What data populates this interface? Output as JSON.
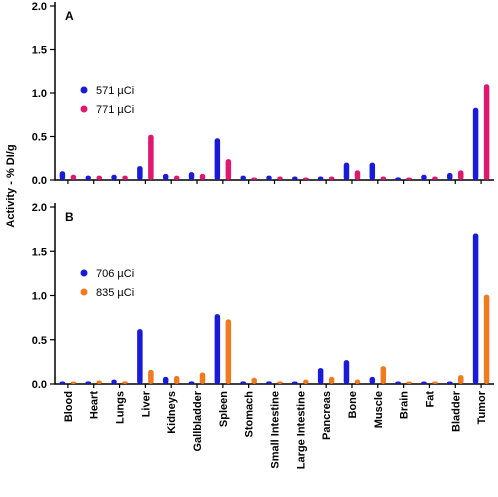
{
  "colors": {
    "panel_a_series_1": "#1a1adb",
    "panel_a_series_2": "#e0176f",
    "panel_b_series_1": "#1a1adb",
    "panel_b_series_2": "#f07a1f"
  },
  "chart_data": [
    {
      "type": "bar",
      "panel_label": "A",
      "ylabel": "Activity - % DI/g",
      "ylim": [
        0,
        2.0
      ],
      "yticks": [
        "0.0",
        "0.5",
        "1.0",
        "1.5",
        "2.0"
      ],
      "categories": [
        "Blood",
        "Heart",
        "Lungs",
        "Liver",
        "Kidneys",
        "Gallbladder",
        "Spleen",
        "Stomach",
        "Small Intestine",
        "Large Intestine",
        "Pancreas",
        "Bone",
        "Muscle",
        "Brain",
        "Fat",
        "Bladder",
        "Tumor"
      ],
      "legend_position": "top-left",
      "series": [
        {
          "name": "571 µCi",
          "values": [
            0.1,
            0.05,
            0.06,
            0.16,
            0.07,
            0.09,
            0.48,
            0.05,
            0.05,
            0.04,
            0.04,
            0.2,
            0.2,
            0.03,
            0.06,
            0.08,
            0.83
          ]
        },
        {
          "name": "771 µCi",
          "values": [
            0.06,
            0.05,
            0.05,
            0.52,
            0.05,
            0.07,
            0.24,
            0.02,
            0.04,
            0.02,
            0.04,
            0.11,
            0.04,
            0.02,
            0.04,
            0.11,
            1.1
          ]
        }
      ]
    },
    {
      "type": "bar",
      "panel_label": "B",
      "ylabel": "Activity - % DI/g",
      "ylim": [
        0,
        2.0
      ],
      "yticks": [
        "0.0",
        "0.5",
        "1.0",
        "1.5",
        "2.0"
      ],
      "categories": [
        "Blood",
        "Heart",
        "Lungs",
        "Liver",
        "Kidneys",
        "Gallbladder",
        "Spleen",
        "Stomach",
        "Small Intestine",
        "Large Intestine",
        "Pancreas",
        "Bone",
        "Muscle",
        "Brain",
        "Fat",
        "Bladder",
        "Tumor"
      ],
      "legend_position": "top-left",
      "series": [
        {
          "name": "706 µCi",
          "values": [
            0.02,
            0.03,
            0.05,
            0.62,
            0.08,
            0.03,
            0.79,
            0.03,
            0.03,
            0.02,
            0.18,
            0.27,
            0.08,
            0.01,
            0.02,
            0.02,
            1.7
          ]
        },
        {
          "name": "835 µCi",
          "values": [
            0.02,
            0.04,
            0.03,
            0.16,
            0.09,
            0.13,
            0.73,
            0.07,
            0.03,
            0.05,
            0.08,
            0.05,
            0.2,
            0.01,
            0.02,
            0.1,
            1.01
          ]
        }
      ]
    }
  ]
}
